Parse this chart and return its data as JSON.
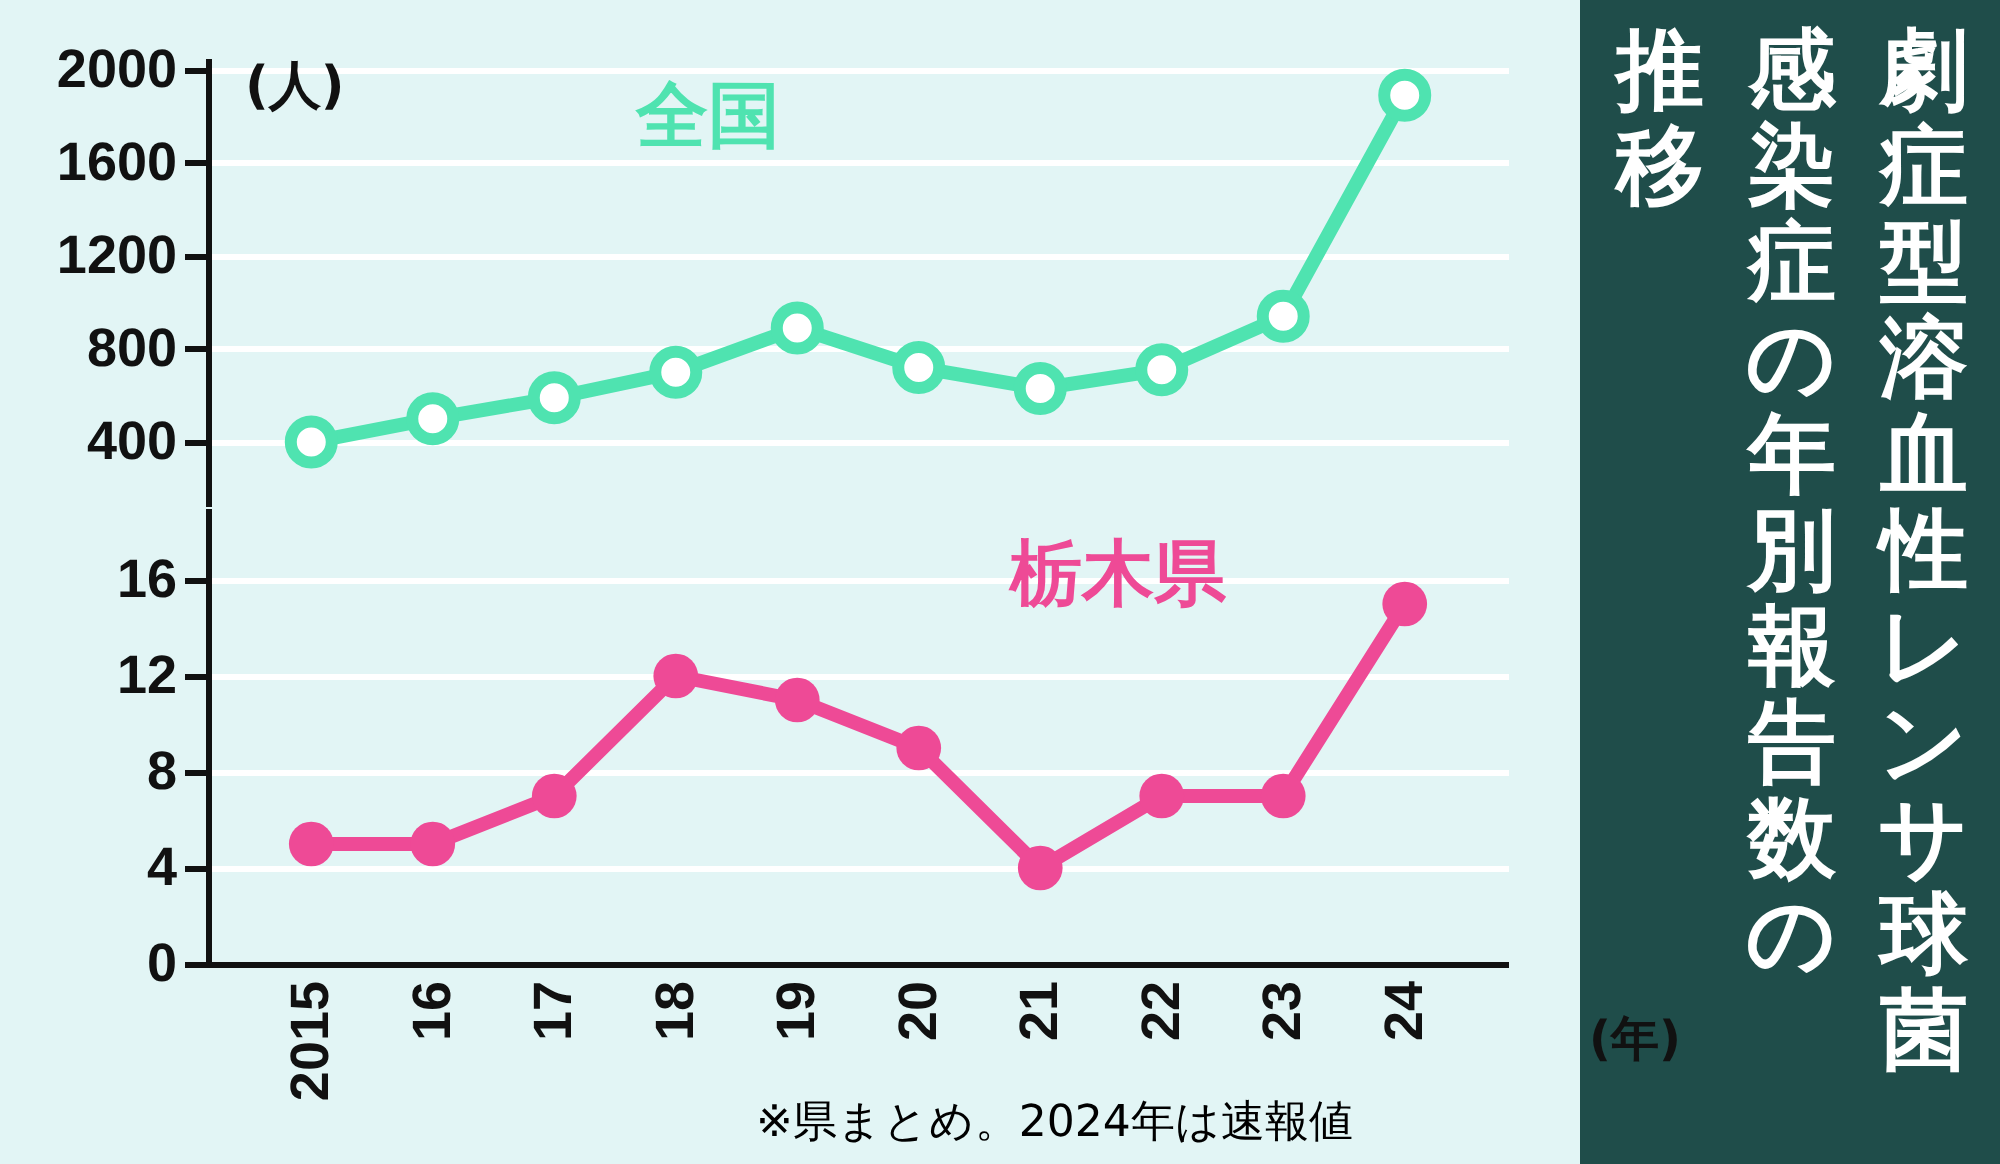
{
  "chart_data": [
    {
      "type": "line",
      "title": "劇症型溶血性レンサ球菌感染症の年別報告数の推移",
      "ylabel": "(人)",
      "categories": [
        "2015",
        "16",
        "17",
        "18",
        "19",
        "20",
        "21",
        "22",
        "23",
        "24"
      ],
      "series": [
        {
          "name": "全国",
          "color": "#4fe3b0",
          "values": [
            400,
            500,
            590,
            700,
            890,
            720,
            630,
            710,
            940,
            1890
          ]
        }
      ],
      "ylim": [
        125,
        2050
      ],
      "yticks": [
        400,
        800,
        1200,
        1600,
        2000
      ],
      "grid": "y",
      "marker": "circle",
      "tick_labels": "y"
    },
    {
      "type": "line",
      "xlabel": "(年)",
      "categories": [
        "2015",
        "16",
        "17",
        "18",
        "19",
        "20",
        "21",
        "22",
        "23",
        "24"
      ],
      "series": [
        {
          "name": "栃木県",
          "color": "#ee4a96",
          "values": [
            5,
            5,
            7,
            12,
            11,
            9,
            4,
            7,
            7,
            15
          ]
        }
      ],
      "ylim": [
        0,
        19
      ],
      "yticks": [
        0,
        4,
        8,
        12,
        16
      ],
      "grid": "y",
      "marker": "circle",
      "annotations": [
        "※県まとめ。2024年は速報値"
      ]
    }
  ]
}
